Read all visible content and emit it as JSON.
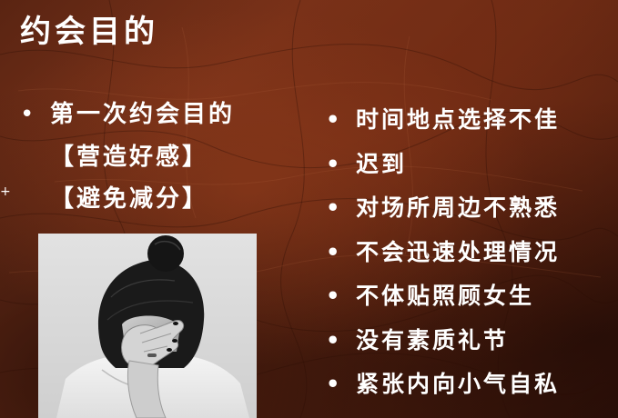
{
  "slide": {
    "title": "约会目的",
    "left": {
      "bullet": "第一次约会目的",
      "sub_items": [
        "【营造好感】",
        "【避免减分】"
      ]
    },
    "right": {
      "items": [
        "时间地点选择不佳",
        "迟到",
        "对场所周边不熟悉",
        "不会迅速处理情况",
        "不体贴照顾女生",
        "没有素质礼节",
        "紧张内向小气自私"
      ]
    },
    "photo": {
      "subject": "woman-covering-face-with-hand",
      "style": "black-and-white"
    },
    "colors": {
      "background": "#6a2a14",
      "text": "#ffffff"
    }
  }
}
